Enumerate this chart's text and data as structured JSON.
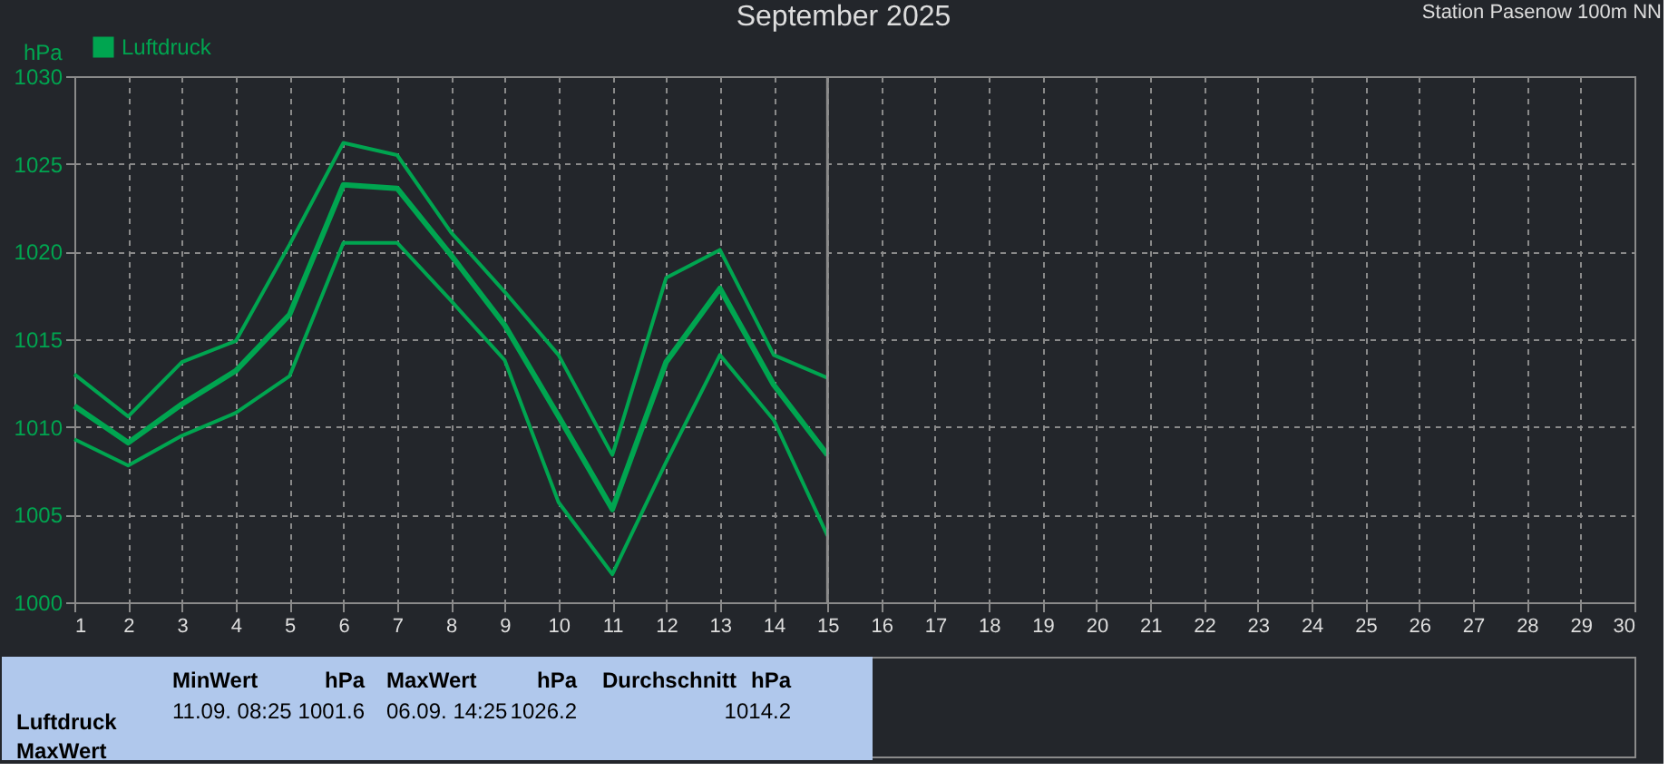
{
  "chart_data": {
    "type": "line",
    "title": "September 2025",
    "ylabel": "hPa",
    "x": [
      1,
      2,
      3,
      4,
      5,
      6,
      7,
      8,
      9,
      10,
      11,
      12,
      13,
      14,
      15
    ],
    "series": [
      {
        "color": "#00a550",
        "values": [
          1013.0,
          1010.6,
          1013.7,
          1014.9,
          1020.4,
          1026.2,
          1025.5,
          1021.1,
          1017.7,
          1014.1,
          1008.4,
          1018.5,
          1020.1,
          1014.1,
          1012.8
        ]
      },
      {
        "name": "Luftdruck",
        "color": "#00a550",
        "values": [
          1011.2,
          1009.1,
          1011.3,
          1013.2,
          1016.4,
          1023.8,
          1023.6,
          1019.8,
          1015.8,
          1010.6,
          1005.3,
          1013.7,
          1017.9,
          1012.4,
          1008.4
        ]
      },
      {
        "color": "#00a550",
        "values": [
          1009.3,
          1007.8,
          1009.5,
          1010.8,
          1012.9,
          1020.5,
          1020.5,
          1017.2,
          1013.8,
          1005.7,
          1001.6,
          1008.0,
          1014.1,
          1010.4,
          1003.8
        ]
      }
    ],
    "xlim": [
      1,
      30
    ],
    "xticks": [
      1,
      2,
      3,
      4,
      5,
      6,
      7,
      8,
      9,
      10,
      11,
      12,
      13,
      14,
      15,
      16,
      17,
      18,
      19,
      20,
      21,
      22,
      23,
      24,
      25,
      26,
      27,
      28,
      29,
      30
    ],
    "ylim": [
      1000,
      1030
    ],
    "yticks": [
      1000,
      1005,
      1010,
      1015,
      1020,
      1025,
      1030
    ],
    "grid": true,
    "legend": "top left",
    "line_style": "solid",
    "marker": "none",
    "ref_lines": [
      {
        "axis": "x",
        "value": 15,
        "color": "#8a8a8a"
      }
    ],
    "annotations": [
      "Station Pasenow 100m NN",
      "Luftdruck",
      "MaxWert",
      "MinWert",
      "hPa",
      "11.09.  08:25",
      "1001.6",
      "MaxWert",
      "hPa",
      "06.09.  14:25",
      "1026.2",
      "Durchschnitt",
      "hPa",
      "1014.2"
    ]
  }
}
